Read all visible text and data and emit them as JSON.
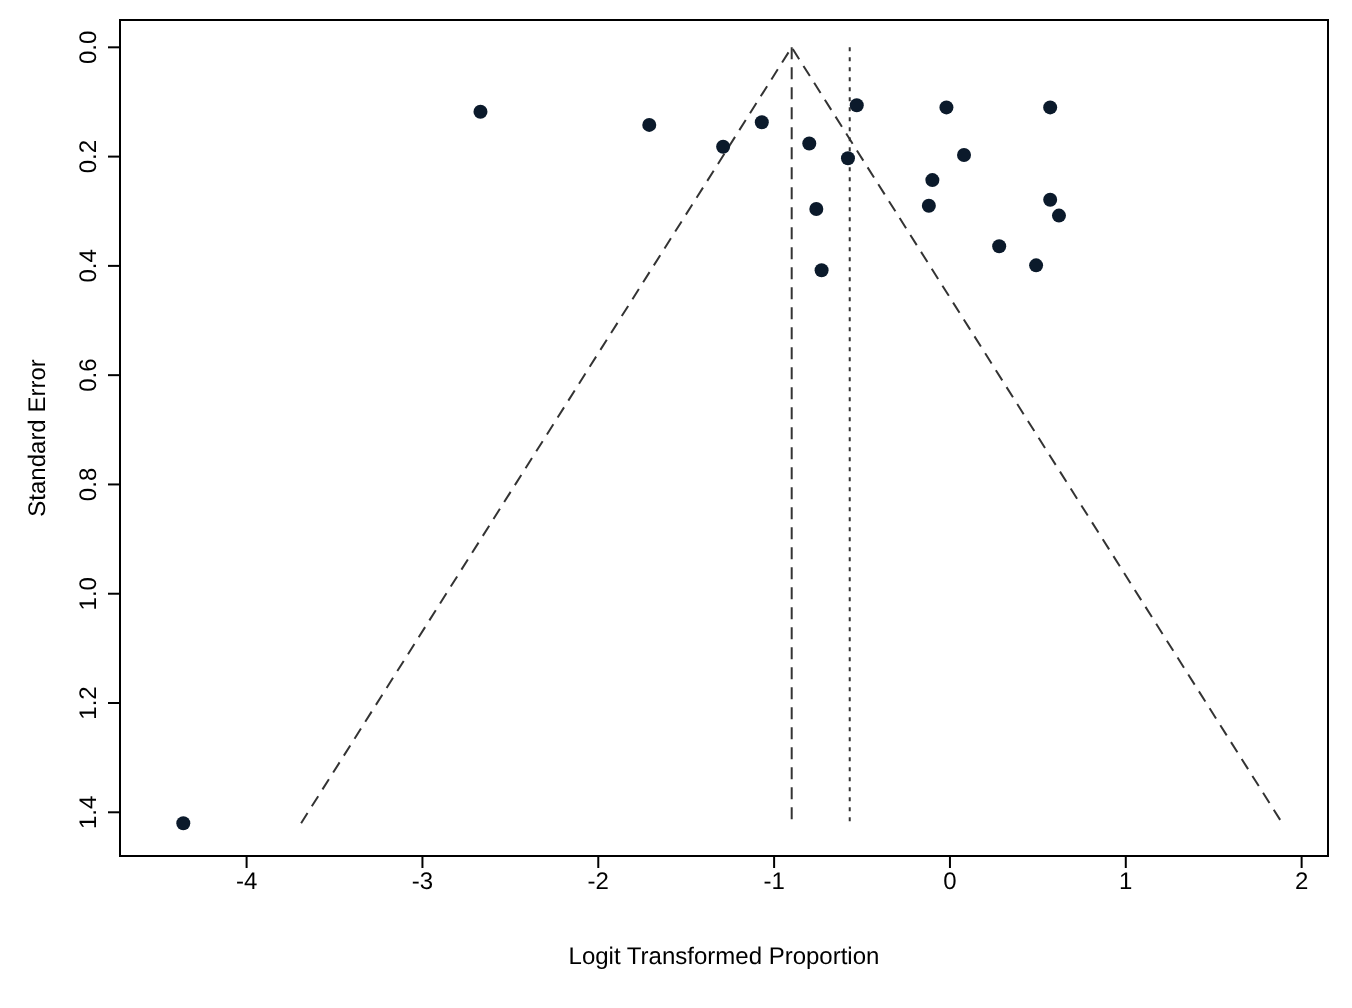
{
  "chart_data": {
    "type": "scatter",
    "xlabel": "Logit Transformed Proportion",
    "ylabel": "Standard Error",
    "xlim": [
      -4.72,
      2.15
    ],
    "xticks": [
      -4,
      -3,
      -2,
      -1,
      0,
      1,
      2
    ],
    "ylim": [
      1.48,
      -0.05
    ],
    "yticks": [
      {
        "value": 0,
        "label": "0.0"
      },
      {
        "value": 0.2,
        "label": "0.2"
      },
      {
        "value": 0.4,
        "label": "0.4"
      },
      {
        "value": 0.6,
        "label": "0.6"
      },
      {
        "value": 0.8,
        "label": "0.8"
      },
      {
        "value": 1,
        "label": "1.0"
      },
      {
        "value": 1.2,
        "label": "1.2"
      },
      {
        "value": 1.4,
        "label": "1.4"
      }
    ],
    "marker": "circle",
    "series": [
      {
        "color": "#0b1a2b",
        "x": [
          -2.67,
          -1.71,
          -0.53,
          -0.02,
          0.57,
          -1.07,
          -1.29,
          -0.8,
          -0.58,
          0.08,
          -0.1,
          -0.12,
          -0.76,
          0.57,
          0.62,
          0.28,
          0.49,
          -0.73,
          -4.36
        ],
        "values": [
          0.118,
          0.142,
          0.106,
          0.11,
          0.11,
          0.137,
          0.182,
          0.176,
          0.203,
          0.197,
          0.243,
          0.29,
          0.296,
          0.279,
          0.308,
          0.364,
          0.399,
          0.408,
          1.42
        ]
      },
      {
        "type": "line",
        "color": "#333333",
        "line_style": "dashed",
        "marker": "none",
        "x": [
          -3.69,
          -0.9,
          1.89
        ],
        "values": [
          1.42,
          0,
          1.42
        ]
      },
      {
        "type": "line",
        "color": "#333333",
        "line_style": "dashed",
        "marker": "none",
        "x": [
          -0.9,
          -0.9
        ],
        "values": [
          0,
          1.42
        ]
      },
      {
        "type": "line",
        "color": "#333333",
        "line_style": "dotted",
        "marker": "none",
        "x": [
          -0.57,
          -0.57
        ],
        "values": [
          0,
          1.42
        ]
      }
    ]
  }
}
